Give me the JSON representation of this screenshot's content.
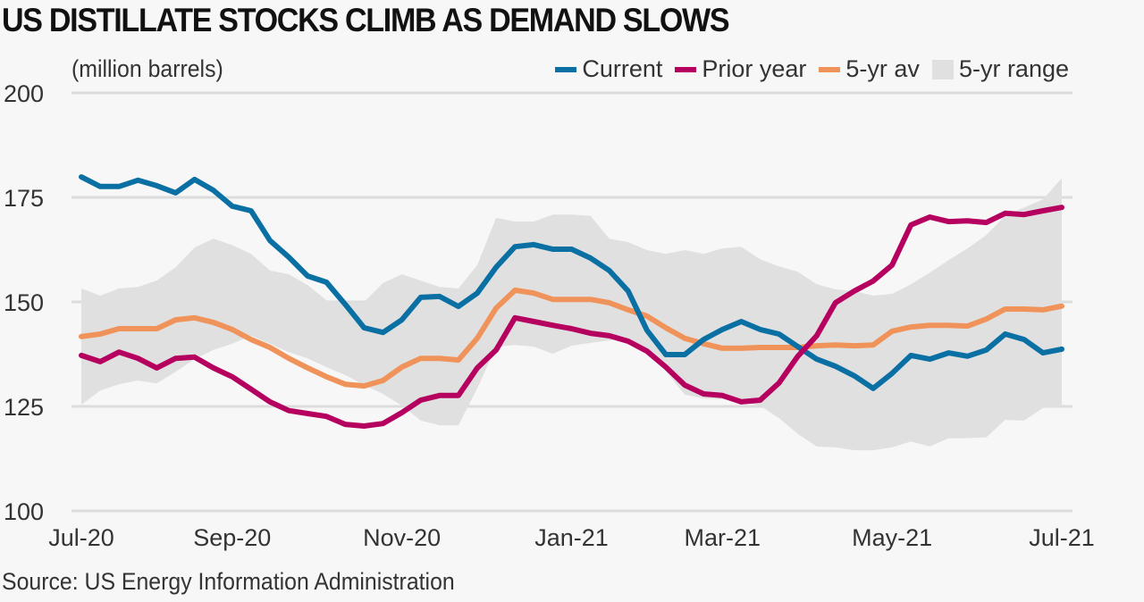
{
  "title": "US DISTILLATE STOCKS CLIMB AS DEMAND SLOWS",
  "unit_label": "(million barrels)",
  "source": "Source: US Energy Information Administration",
  "legend": [
    {
      "label": "Current",
      "color": "#0a70a4",
      "kind": "line"
    },
    {
      "label": "Prior year",
      "color": "#b5005f",
      "kind": "line"
    },
    {
      "label": "5-yr av",
      "color": "#f0935a",
      "kind": "line"
    },
    {
      "label": "5-yr range",
      "color": "#e0e0e0",
      "kind": "area"
    }
  ],
  "chart_data": {
    "type": "line",
    "title": "US DISTILLATE STOCKS CLIMB AS DEMAND SLOWS",
    "ylabel": "(million barrels)",
    "xlabel": "",
    "ylim": [
      100,
      200
    ],
    "yticks": [
      100,
      125,
      150,
      175,
      200
    ],
    "grid": true,
    "legend_position": "top-right",
    "x_tick_labels": [
      {
        "label": "Jul-20",
        "index": 0
      },
      {
        "label": "Sep-20",
        "index": 8
      },
      {
        "label": "Nov-20",
        "index": 17
      },
      {
        "label": "Jan-21",
        "index": 26
      },
      {
        "label": "Mar-21",
        "index": 34
      },
      {
        "label": "May-21",
        "index": 43
      },
      {
        "label": "Jul-21",
        "index": 52
      }
    ],
    "n_points": 53,
    "x_unit": "weekly",
    "series": [
      {
        "name": "Current",
        "color": "#0a70a4",
        "values": [
          179.9,
          177.6,
          177.6,
          179.1,
          177.8,
          176.1,
          179.3,
          176.7,
          172.9,
          171.8,
          164.7,
          160.7,
          156.2,
          154.7,
          149.4,
          143.8,
          142.7,
          145.7,
          151.1,
          151.3,
          148.9,
          152.1,
          158.3,
          163.2,
          163.7,
          162.6,
          162.6,
          160.5,
          157.5,
          152.6,
          143.2,
          137.4,
          137.4,
          141.0,
          143.4,
          145.3,
          143.4,
          142.3,
          139.3,
          136.3,
          134.6,
          132.3,
          129.3,
          132.9,
          137.2,
          136.3,
          137.8,
          137.0,
          138.5,
          142.3,
          141.0,
          137.8,
          138.7
        ]
      },
      {
        "name": "Prior year",
        "color": "#b5005f",
        "values": [
          137.2,
          135.7,
          138.0,
          136.5,
          134.2,
          136.5,
          136.8,
          134.2,
          132.1,
          129.1,
          126.1,
          124.0,
          123.3,
          122.6,
          120.7,
          120.3,
          120.9,
          123.5,
          126.5,
          127.6,
          127.6,
          134.2,
          138.5,
          146.2,
          145.3,
          144.4,
          143.6,
          142.5,
          141.9,
          140.6,
          138.2,
          134.4,
          130.1,
          128.0,
          127.6,
          126.1,
          126.5,
          130.6,
          137.0,
          141.9,
          149.8,
          152.6,
          155.0,
          158.8,
          168.4,
          170.3,
          169.2,
          169.4,
          169.0,
          171.2,
          170.9,
          171.8,
          172.6
        ]
      },
      {
        "name": "5-yr av",
        "color": "#f0935a",
        "values": [
          141.7,
          142.3,
          143.6,
          143.6,
          143.6,
          145.7,
          146.2,
          145.1,
          143.4,
          141.0,
          139.1,
          136.5,
          134.2,
          132.1,
          130.3,
          129.9,
          131.2,
          134.4,
          136.5,
          136.5,
          136.1,
          141.3,
          148.5,
          152.8,
          152.1,
          150.6,
          150.6,
          150.6,
          149.8,
          148.1,
          146.6,
          143.8,
          141.3,
          140.0,
          138.9,
          138.9,
          139.1,
          139.1,
          139.1,
          139.5,
          139.7,
          139.5,
          139.7,
          143.0,
          144.0,
          144.4,
          144.4,
          144.2,
          145.9,
          148.3,
          148.3,
          148.1,
          149.0
        ]
      },
      {
        "name": "5-yr range (max)",
        "color": "#e0e0e0",
        "values": [
          153.2,
          151.5,
          153.2,
          153.6,
          155.1,
          158.3,
          163.0,
          165.1,
          163.6,
          161.5,
          157.5,
          156.6,
          154.0,
          150.4,
          149.8,
          150.0,
          154.5,
          156.6,
          155.1,
          153.6,
          153.2,
          158.8,
          170.1,
          169.2,
          169.2,
          170.9,
          170.9,
          170.6,
          165.1,
          164.3,
          162.4,
          161.5,
          162.4,
          161.5,
          162.8,
          163.2,
          160.2,
          158.5,
          157.2,
          154.2,
          153.0,
          152.6,
          151.5,
          151.9,
          154.2,
          157.0,
          160.0,
          162.8,
          166.0,
          170.6,
          172.6,
          174.5,
          179.6
        ]
      },
      {
        "name": "5-yr range (min)",
        "color": "#e0e0e0",
        "values": [
          125.4,
          128.8,
          130.3,
          131.2,
          130.5,
          133.3,
          136.3,
          138.5,
          140.0,
          141.9,
          140.0,
          138.0,
          136.5,
          134.4,
          132.5,
          130.1,
          128.0,
          125.2,
          121.6,
          120.5,
          120.5,
          129.3,
          139.3,
          139.7,
          139.3,
          137.6,
          139.5,
          140.2,
          140.8,
          141.3,
          138.5,
          133.5,
          127.8,
          126.9,
          126.7,
          126.1,
          125.2,
          122.2,
          118.4,
          115.4,
          115.2,
          114.5,
          114.5,
          115.2,
          116.6,
          115.4,
          117.4,
          117.4,
          117.6,
          121.8,
          121.6,
          124.6,
          125.0
        ]
      }
    ]
  }
}
